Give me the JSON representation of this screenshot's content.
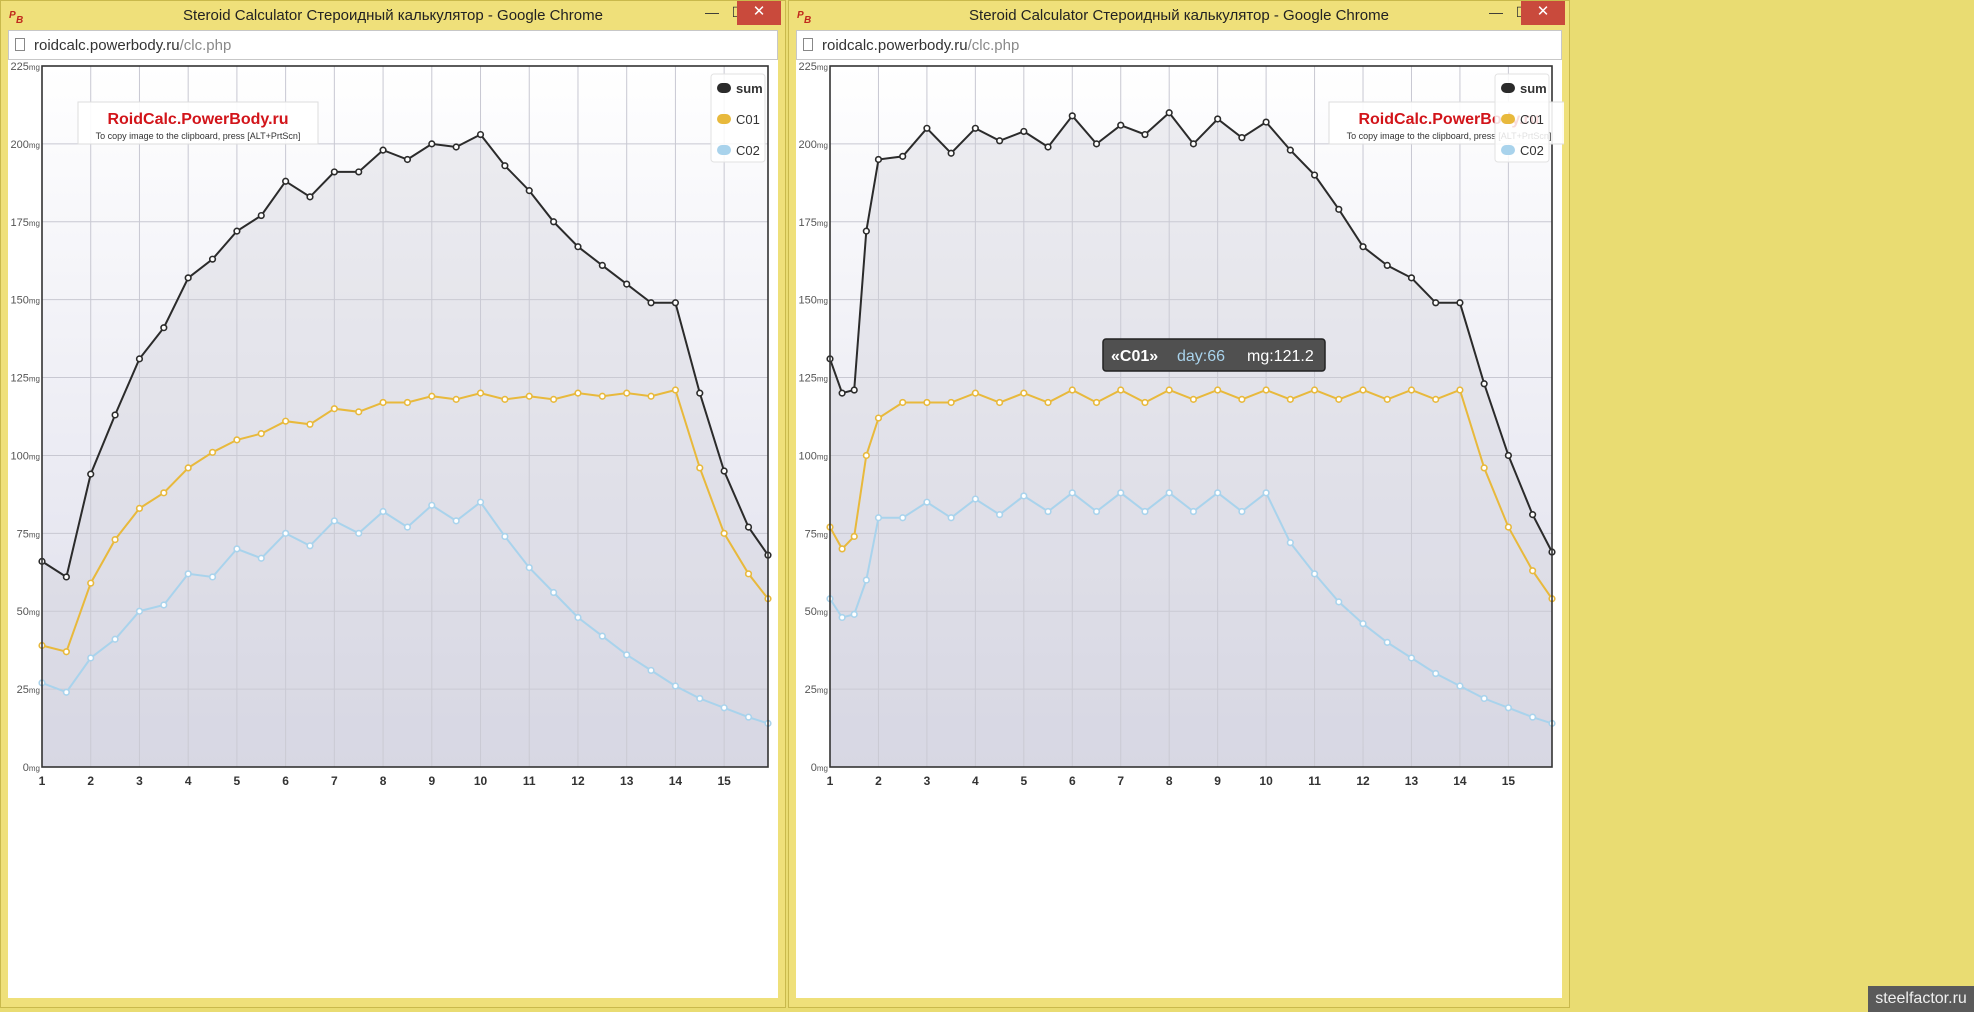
{
  "windows": [
    {
      "title": "Steroid Calculator Стероидный калькулятор - Google Chrome",
      "url_host": "roidcalc.powerbody.ru",
      "url_path": "/clc.php",
      "controls": {
        "minimize": "—",
        "maximize": "☐",
        "close": "✕"
      }
    },
    {
      "title": "Steroid Calculator Стероидный калькулятор - Google Chrome",
      "url_host": "roidcalc.powerbody.ru",
      "url_path": "/clc.php",
      "controls": {
        "minimize": "—",
        "maximize": "☐",
        "close": "✕"
      }
    }
  ],
  "watermark_site": "steelfactor.ru",
  "colors": {
    "sum": "#2b2b2b",
    "C01": "#e8b93c",
    "C02": "#a9d3ec"
  },
  "chart_data": [
    {
      "type": "line",
      "title": "RoidCalc.PowerBody.ru",
      "subtitle": "To copy image to the clipboard, press [ALT+PrtScn]",
      "xlabel": "",
      "ylabel": "",
      "xlim": [
        1,
        15.9
      ],
      "ylim": [
        0,
        225
      ],
      "xticks": [
        1,
        2,
        3,
        4,
        5,
        6,
        7,
        8,
        9,
        10,
        11,
        12,
        13,
        14,
        15
      ],
      "yticks": [
        0,
        25,
        50,
        75,
        100,
        125,
        150,
        175,
        200,
        225
      ],
      "y_unit": "mg",
      "grid": true,
      "legend": "top-right",
      "tooltip": null,
      "series": [
        {
          "name": "sum",
          "x": [
            1.0,
            1.5,
            2.0,
            2.5,
            3.0,
            3.5,
            4.0,
            4.5,
            5.0,
            5.5,
            6.0,
            6.5,
            7.0,
            7.5,
            8.0,
            8.5,
            9.0,
            9.5,
            10.0,
            10.5,
            11.0,
            11.5,
            12.0,
            12.5,
            13.0,
            13.5,
            14.0,
            14.5,
            15.0,
            15.5,
            15.9
          ],
          "y": [
            66,
            61,
            94,
            113,
            131,
            141,
            157,
            163,
            172,
            177,
            188,
            183,
            191,
            191,
            198,
            195,
            200,
            199,
            203,
            193,
            185,
            175,
            167,
            161,
            155,
            149,
            149,
            120,
            95,
            77,
            68
          ]
        },
        {
          "name": "C01",
          "x": [
            1.0,
            1.5,
            2.0,
            2.5,
            3.0,
            3.5,
            4.0,
            4.5,
            5.0,
            5.5,
            6.0,
            6.5,
            7.0,
            7.5,
            8.0,
            8.5,
            9.0,
            9.5,
            10.0,
            10.5,
            11.0,
            11.5,
            12.0,
            12.5,
            13.0,
            13.5,
            14.0,
            14.5,
            15.0,
            15.5,
            15.9
          ],
          "y": [
            39,
            37,
            59,
            73,
            83,
            88,
            96,
            101,
            105,
            107,
            111,
            110,
            115,
            114,
            117,
            117,
            119,
            118,
            120,
            118,
            119,
            118,
            120,
            119,
            120,
            119,
            121,
            96,
            75,
            62,
            54
          ]
        },
        {
          "name": "C02",
          "x": [
            1.0,
            1.5,
            2.0,
            2.5,
            3.0,
            3.5,
            4.0,
            4.5,
            5.0,
            5.5,
            6.0,
            6.5,
            7.0,
            7.5,
            8.0,
            8.5,
            9.0,
            9.5,
            10.0,
            10.5,
            11.0,
            11.5,
            12.0,
            12.5,
            13.0,
            13.5,
            14.0,
            14.5,
            15.0,
            15.5,
            15.9
          ],
          "y": [
            27,
            24,
            35,
            41,
            50,
            52,
            62,
            61,
            70,
            67,
            75,
            71,
            79,
            75,
            82,
            77,
            84,
            79,
            85,
            74,
            64,
            56,
            48,
            42,
            36,
            31,
            26,
            22,
            19,
            16,
            14
          ]
        }
      ]
    },
    {
      "type": "line",
      "title": "RoidCalc.PowerBody.ru",
      "subtitle": "To copy image to the clipboard, press [ALT+PrtScn]",
      "xlabel": "",
      "ylabel": "",
      "xlim": [
        1,
        15.9
      ],
      "ylim": [
        0,
        225
      ],
      "xticks": [
        1,
        2,
        3,
        4,
        5,
        6,
        7,
        8,
        9,
        10,
        11,
        12,
        13,
        14,
        15
      ],
      "yticks": [
        0,
        25,
        50,
        75,
        100,
        125,
        150,
        175,
        200,
        225
      ],
      "y_unit": "mg",
      "grid": true,
      "legend": "top-right",
      "tooltip": {
        "series": "«C01»",
        "day_label": "day:66",
        "mg_label": "mg:121.2"
      },
      "series": [
        {
          "name": "sum",
          "x": [
            1.0,
            1.25,
            1.5,
            1.75,
            2.0,
            2.5,
            3.0,
            3.5,
            4.0,
            4.5,
            5.0,
            5.5,
            6.0,
            6.5,
            7.0,
            7.5,
            8.0,
            8.5,
            9.0,
            9.5,
            10.0,
            10.5,
            11.0,
            11.5,
            12.0,
            12.5,
            13.0,
            13.5,
            14.0,
            14.5,
            15.0,
            15.5,
            15.9
          ],
          "y": [
            131,
            120,
            121,
            172,
            195,
            196,
            205,
            197,
            205,
            201,
            204,
            199,
            209,
            200,
            206,
            203,
            210,
            200,
            208,
            202,
            207,
            198,
            190,
            179,
            167,
            161,
            157,
            149,
            149,
            123,
            100,
            81,
            69
          ]
        },
        {
          "name": "C01",
          "x": [
            1.0,
            1.25,
            1.5,
            1.75,
            2.0,
            2.5,
            3.0,
            3.5,
            4.0,
            4.5,
            5.0,
            5.5,
            6.0,
            6.5,
            7.0,
            7.5,
            8.0,
            8.5,
            9.0,
            9.5,
            10.0,
            10.5,
            11.0,
            11.5,
            12.0,
            12.5,
            13.0,
            13.5,
            14.0,
            14.5,
            15.0,
            15.5,
            15.9
          ],
          "y": [
            77,
            70,
            74,
            100,
            112,
            117,
            117,
            117,
            120,
            117,
            120,
            117,
            121,
            117,
            121,
            117,
            121,
            118,
            121,
            118,
            121,
            118,
            121,
            118,
            121,
            118,
            121,
            118,
            121,
            96,
            77,
            63,
            54
          ]
        },
        {
          "name": "C02",
          "x": [
            1.0,
            1.25,
            1.5,
            1.75,
            2.0,
            2.5,
            3.0,
            3.5,
            4.0,
            4.5,
            5.0,
            5.5,
            6.0,
            6.5,
            7.0,
            7.5,
            8.0,
            8.5,
            9.0,
            9.5,
            10.0,
            10.5,
            11.0,
            11.5,
            12.0,
            12.5,
            13.0,
            13.5,
            14.0,
            14.5,
            15.0,
            15.5,
            15.9
          ],
          "y": [
            54,
            48,
            49,
            60,
            80,
            80,
            85,
            80,
            86,
            81,
            87,
            82,
            88,
            82,
            88,
            82,
            88,
            82,
            88,
            82,
            88,
            72,
            62,
            53,
            46,
            40,
            35,
            30,
            26,
            22,
            19,
            16,
            14
          ]
        }
      ]
    }
  ]
}
